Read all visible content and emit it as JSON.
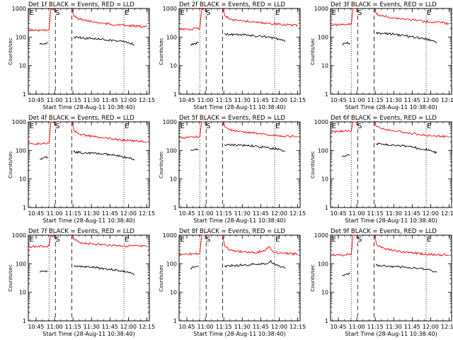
{
  "figure": {
    "panel_titles": [
      "Det 1f BLACK = Events, RED = LLD",
      "Det 2f BLACK = Events, RED = LLD",
      "Det 3f BLACK = Events, RED = LLD",
      "Det 4f BLACK = Events, RED = LLD",
      "Det 5f BLACK = Events, RED = LLD",
      "Det 6f BLACK = Events, RED = LLD",
      "Det 7f BLACK = Events, RED = LLD",
      "Det 8f BLACK = Events, RED = LLD",
      "Det 9f BLACK = Events, RED = LLD"
    ],
    "xlabel": "Start Time (28-Aug-11 10:38:40)",
    "ylabel": "Counts/sec",
    "x_tick_labels": [
      "10:45",
      "11:00",
      "11:15",
      "11:30",
      "11:45",
      "12:00",
      "12:15"
    ],
    "y_tick_labels": [
      "1",
      "10",
      "100",
      "1000"
    ],
    "interval_flags": [
      "E",
      "S",
      "E"
    ],
    "colors": {
      "events": "#000000",
      "lld": "#ff0000",
      "axes": "#000000"
    }
  },
  "chart_data": {
    "type": "line",
    "scale": {
      "x": "time",
      "y": "log"
    },
    "xlim": [
      "10:38:40",
      "12:17:00"
    ],
    "ylim": [
      1,
      1000
    ],
    "grid": false,
    "markers": {
      "dotted_lines": [
        "10:55:30",
        "11:56:20"
      ],
      "dashed_lines": [
        "11:00:40",
        "11:14:00"
      ],
      "flags": [
        {
          "label": "E",
          "time": "10:39:00"
        },
        {
          "label": "S",
          "time": "11:00:00"
        },
        {
          "label": "E",
          "time": "11:56:20"
        }
      ]
    },
    "panels": [
      {
        "detector": "Det 1f",
        "series": [
          {
            "name": "BLACK = Events",
            "segments": [
              {
                "x": [
                  "10:48",
                  "10:50",
                  "10:52",
                  "10:54:30"
                ],
                "y": [
                  55,
                  58,
                  60,
                  62
                ]
              },
              {
                "x": [
                  "11:15:30",
                  "11:20",
                  "11:30",
                  "11:40",
                  "11:50",
                  "12:00",
                  "12:05"
                ],
                "y": [
                  100,
                  95,
                  90,
                  82,
                  75,
                  65,
                  55
                ]
              }
            ]
          },
          {
            "name": "RED = LLD",
            "segments": [
              {
                "x": [
                  "10:39",
                  "10:45",
                  "10:50",
                  "10:55:30",
                  "10:57",
                  "11:00"
                ],
                "y": [
                  170,
                  170,
                  175,
                  180,
                  1000,
                  1000
                ]
              },
              {
                "x": [
                  "11:14",
                  "11:16",
                  "11:20",
                  "11:30",
                  "11:40",
                  "11:50",
                  "12:00",
                  "12:15"
                ],
                "y": [
                  1000,
                  520,
                  420,
                  350,
                  300,
                  270,
                  250,
                  230
                ]
              }
            ]
          }
        ]
      },
      {
        "detector": "Det 2f",
        "series": [
          {
            "name": "BLACK = Events",
            "segments": [
              {
                "x": [
                  "10:48",
                  "10:51",
                  "10:54:30"
                ],
                "y": [
                  55,
                  60,
                  62
                ]
              },
              {
                "x": [
                  "11:15:30",
                  "11:20",
                  "11:30",
                  "11:40",
                  "11:50",
                  "12:00",
                  "12:05"
                ],
                "y": [
                  130,
                  125,
                  120,
                  110,
                  100,
                  85,
                  70
                ]
              }
            ]
          },
          {
            "name": "RED = LLD",
            "segments": [
              {
                "x": [
                  "10:39",
                  "10:45",
                  "10:50",
                  "10:55:30",
                  "10:57",
                  "11:00"
                ],
                "y": [
                  190,
                  190,
                  195,
                  200,
                  1000,
                  1000
                ]
              },
              {
                "x": [
                  "11:14",
                  "11:16",
                  "11:20",
                  "11:30",
                  "11:40",
                  "11:50",
                  "12:00",
                  "12:15"
                ],
                "y": [
                  1000,
                  550,
                  430,
                  370,
                  330,
                  300,
                  280,
                  260
                ]
              }
            ]
          }
        ]
      },
      {
        "detector": "Det 3f",
        "series": [
          {
            "name": "BLACK = Events",
            "segments": [
              {
                "x": [
                  "10:48",
                  "10:51",
                  "10:54:30"
                ],
                "y": [
                  55,
                  60,
                  62
                ]
              },
              {
                "x": [
                  "11:15:30",
                  "11:20",
                  "11:30",
                  "11:40",
                  "11:50",
                  "12:00",
                  "12:05"
                ],
                "y": [
                  140,
                  135,
                  125,
                  110,
                  95,
                  80,
                  65
                ]
              }
            ]
          },
          {
            "name": "RED = LLD",
            "segments": [
              {
                "x": [
                  "10:39",
                  "10:45",
                  "10:50",
                  "10:55:30",
                  "10:57",
                  "11:00"
                ],
                "y": [
                  270,
                  270,
                  275,
                  280,
                  1000,
                  1000
                ]
              },
              {
                "x": [
                  "11:14",
                  "11:16",
                  "11:20",
                  "11:30",
                  "11:40",
                  "11:50",
                  "12:00",
                  "12:15"
                ],
                "y": [
                  1000,
                  650,
                  550,
                  470,
                  420,
                  380,
                  340,
                  300
                ]
              }
            ]
          }
        ]
      },
      {
        "detector": "Det 4f",
        "series": [
          {
            "name": "BLACK = Events",
            "segments": [
              {
                "x": [
                  "10:48",
                  "10:51",
                  "10:54:30"
                ],
                "y": [
                  50,
                  55,
                  58
                ]
              },
              {
                "x": [
                  "11:15:30",
                  "11:20",
                  "11:30",
                  "11:40",
                  "11:50",
                  "12:00",
                  "12:05"
                ],
                "y": [
                  90,
                  85,
                  80,
                  75,
                  65,
                  55,
                  45
                ]
              }
            ]
          },
          {
            "name": "RED = LLD",
            "segments": [
              {
                "x": [
                  "10:39",
                  "10:45",
                  "10:50",
                  "10:55:30",
                  "10:57",
                  "11:00"
                ],
                "y": [
                  170,
                  170,
                  175,
                  180,
                  1000,
                  1000
                ]
              },
              {
                "x": [
                  "11:14",
                  "11:16",
                  "11:20",
                  "11:30",
                  "11:40",
                  "11:50",
                  "12:00",
                  "12:15"
                ],
                "y": [
                  1000,
                  480,
                  380,
                  310,
                  270,
                  240,
                  220,
                  200
                ]
              }
            ]
          }
        ]
      },
      {
        "detector": "Det 5f",
        "series": [
          {
            "name": "BLACK = Events",
            "segments": [
              {
                "x": [
                  "10:48",
                  "10:51",
                  "10:54:30"
                ],
                "y": [
                  100,
                  105,
                  110
                ]
              },
              {
                "x": [
                  "11:15:30",
                  "11:20",
                  "11:30",
                  "11:40",
                  "11:50",
                  "12:00",
                  "12:05"
                ],
                "y": [
                  160,
                  155,
                  150,
                  140,
                  125,
                  110,
                  95
                ]
              }
            ]
          },
          {
            "name": "RED = LLD",
            "segments": [
              {
                "x": [
                  "10:39",
                  "10:45",
                  "10:50",
                  "10:55:30",
                  "10:57",
                  "11:00"
                ],
                "y": [
                  280,
                  280,
                  290,
                  300,
                  1000,
                  1000
                ]
              },
              {
                "x": [
                  "11:14",
                  "11:16",
                  "11:20",
                  "11:30",
                  "11:40",
                  "11:50",
                  "12:00",
                  "12:15"
                ],
                "y": [
                  1000,
                  650,
                  520,
                  450,
                  400,
                  360,
                  330,
                  300
                ]
              }
            ]
          }
        ]
      },
      {
        "detector": "Det 6f",
        "series": [
          {
            "name": "BLACK = Events",
            "segments": [
              {
                "x": [
                  "10:48",
                  "10:51",
                  "10:54:30"
                ],
                "y": [
                  60,
                  65,
                  70
                ]
              },
              {
                "x": [
                  "11:15:30",
                  "11:20",
                  "11:30",
                  "11:40",
                  "11:50",
                  "12:00",
                  "12:05"
                ],
                "y": [
                  170,
                  165,
                  155,
                  140,
                  120,
                  100,
                  80
                ]
              }
            ]
          },
          {
            "name": "RED = LLD",
            "segments": [
              {
                "x": [
                  "10:39",
                  "10:45",
                  "10:50",
                  "10:55:30",
                  "10:57",
                  "11:00"
                ],
                "y": [
                  450,
                  450,
                  470,
                  480,
                  1000,
                  1000
                ]
              },
              {
                "x": [
                  "11:14",
                  "11:16",
                  "11:20",
                  "11:30",
                  "11:40",
                  "11:50",
                  "12:00",
                  "12:15"
                ],
                "y": [
                  1000,
                  700,
                  580,
                  480,
                  410,
                  370,
                  330,
                  300
                ]
              }
            ]
          }
        ]
      },
      {
        "detector": "Det 7f",
        "series": [
          {
            "name": "BLACK = Events",
            "segments": [
              {
                "x": [
                  "10:48",
                  "10:51",
                  "10:54:30"
                ],
                "y": [
                  50,
                  53,
                  55
                ]
              },
              {
                "x": [
                  "11:15:30",
                  "11:20",
                  "11:30",
                  "11:40",
                  "11:50",
                  "12:00",
                  "12:05"
                ],
                "y": [
                  85,
                  80,
                  75,
                  68,
                  60,
                  50,
                  40
                ]
              }
            ]
          },
          {
            "name": "RED = LLD",
            "segments": [
              {
                "x": [
                  "10:39",
                  "10:45",
                  "10:50",
                  "10:55:30",
                  "10:57",
                  "11:00"
                ],
                "y": [
                  400,
                  400,
                  410,
                  420,
                  1000,
                  1000
                ]
              },
              {
                "x": [
                  "11:14",
                  "11:16",
                  "11:20",
                  "11:30",
                  "11:40",
                  "11:50",
                  "12:00",
                  "12:15"
                ],
                "y": [
                  1000,
                  700,
                  560,
                  500,
                  460,
                  440,
                  420,
                  400
                ]
              }
            ]
          }
        ]
      },
      {
        "detector": "Det 8f",
        "series": [
          {
            "name": "BLACK = Events",
            "segments": [
              {
                "x": [
                  "10:48",
                  "10:51",
                  "10:54:30"
                ],
                "y": [
                  70,
                  75,
                  80
                ]
              },
              {
                "x": [
                  "11:15:30",
                  "11:20",
                  "11:30",
                  "11:40",
                  "11:50",
                  "11:53",
                  "11:55",
                  "12:00",
                  "12:05"
                ],
                "y": [
                  80,
                  85,
                  90,
                  95,
                  100,
                  130,
                  100,
                  85,
                  70
                ]
              }
            ]
          },
          {
            "name": "RED = LLD",
            "segments": [
              {
                "x": [
                  "10:39",
                  "10:45",
                  "10:50",
                  "10:55:30",
                  "10:57",
                  "11:00"
                ],
                "y": [
                  220,
                  220,
                  225,
                  230,
                  1000,
                  1000
                ]
              },
              {
                "x": [
                  "11:14",
                  "11:16",
                  "11:20",
                  "11:30",
                  "11:40",
                  "11:48",
                  "11:52",
                  "11:55",
                  "12:00",
                  "12:15"
                ],
                "y": [
                  1000,
                  400,
                  300,
                  260,
                  240,
                  280,
                  400,
                  260,
                  230,
                  220
                ]
              }
            ]
          }
        ]
      },
      {
        "detector": "Det 9f",
        "series": [
          {
            "name": "BLACK = Events",
            "segments": [
              {
                "x": [
                  "10:48",
                  "10:51",
                  "10:54:30"
                ],
                "y": [
                  40,
                  42,
                  45
                ]
              },
              {
                "x": [
                  "11:15:30",
                  "11:20",
                  "11:30",
                  "11:40",
                  "11:50",
                  "12:00",
                  "12:05"
                ],
                "y": [
                  90,
                  85,
                  80,
                  75,
                  68,
                  60,
                  50
                ]
              }
            ]
          },
          {
            "name": "RED = LLD",
            "segments": [
              {
                "x": [
                  "10:39",
                  "10:45",
                  "10:50",
                  "10:55:30",
                  "10:57",
                  "11:00"
                ],
                "y": [
                  200,
                  200,
                  205,
                  210,
                  1000,
                  1000
                ]
              },
              {
                "x": [
                  "11:14",
                  "11:16",
                  "11:20",
                  "11:30",
                  "11:40",
                  "11:50",
                  "12:00",
                  "12:15"
                ],
                "y": [
                  1000,
                  480,
                  360,
                  290,
                  250,
                  230,
                  210,
                  200
                ]
              }
            ]
          }
        ]
      }
    ]
  }
}
